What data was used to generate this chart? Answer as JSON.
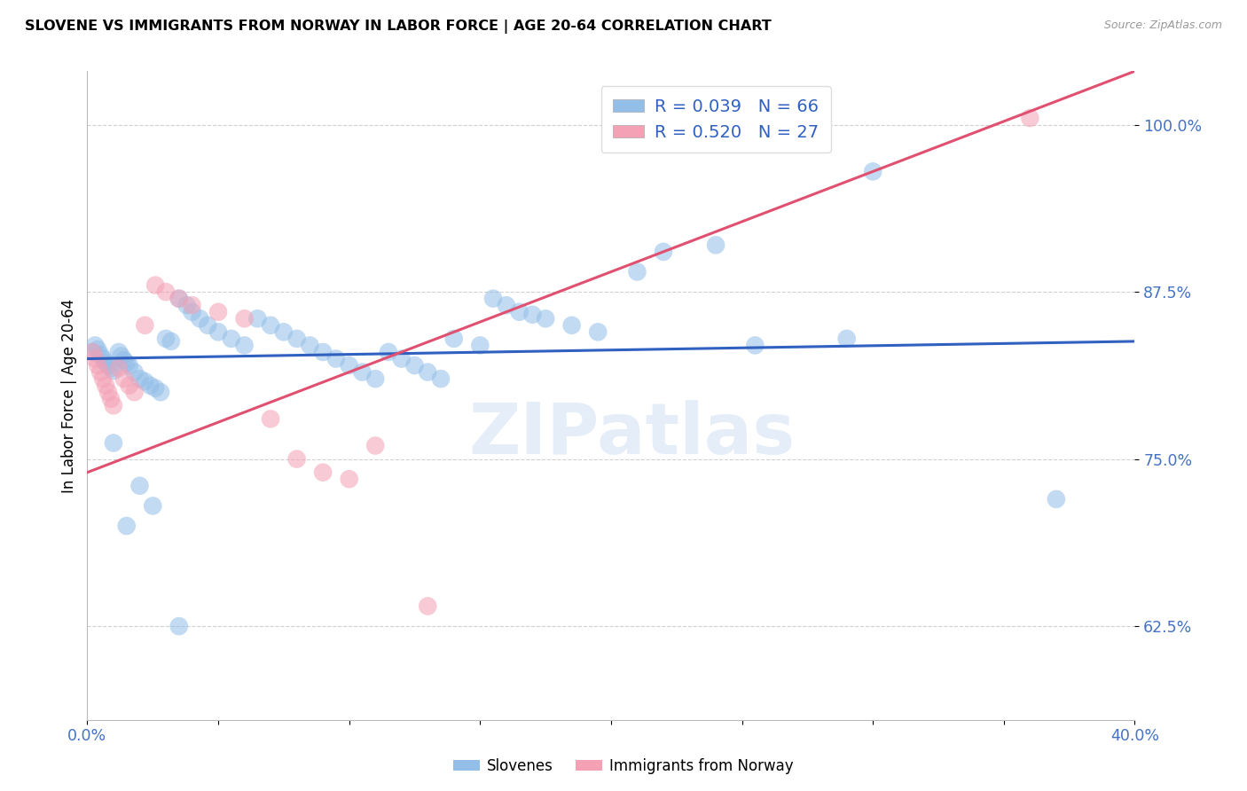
{
  "title": "SLOVENE VS IMMIGRANTS FROM NORWAY IN LABOR FORCE | AGE 20-64 CORRELATION CHART",
  "source_text": "Source: ZipAtlas.com",
  "ylabel": "In Labor Force | Age 20-64",
  "xlim": [
    0.0,
    0.4
  ],
  "ylim": [
    0.555,
    1.04
  ],
  "yticks": [
    0.625,
    0.75,
    0.875,
    1.0
  ],
  "ytick_labels": [
    "62.5%",
    "75.0%",
    "87.5%",
    "100.0%"
  ],
  "xticks": [
    0.0,
    0.05,
    0.1,
    0.15,
    0.2,
    0.25,
    0.3,
    0.35,
    0.4
  ],
  "xtick_labels": [
    "0.0%",
    "",
    "",
    "",
    "",
    "",
    "",
    "",
    "40.0%"
  ],
  "blue_color": "#92BEE8",
  "pink_color": "#F4A0B5",
  "blue_line_color": "#3060C0",
  "pink_line_color": "#E05070",
  "legend_blue_label": "R = 0.039   N = 66",
  "legend_pink_label": "R = 0.520   N = 27",
  "bottom_legend_blue": "Slovenes",
  "bottom_legend_pink": "Immigrants from Norway",
  "blue_line_x0": 0.0,
  "blue_line_x1": 0.4,
  "blue_line_y0": 0.825,
  "blue_line_y1": 0.838,
  "pink_line_x0": 0.0,
  "pink_line_x1": 0.4,
  "pink_line_y0": 0.74,
  "pink_line_y1": 1.04,
  "blue_scatter_x": [
    0.002,
    0.003,
    0.004,
    0.005,
    0.006,
    0.007,
    0.008,
    0.009,
    0.01,
    0.012,
    0.013,
    0.014,
    0.015,
    0.016,
    0.018,
    0.02,
    0.022,
    0.024,
    0.026,
    0.028,
    0.03,
    0.032,
    0.035,
    0.038,
    0.04,
    0.043,
    0.046,
    0.05,
    0.055,
    0.06,
    0.065,
    0.07,
    0.075,
    0.08,
    0.085,
    0.09,
    0.095,
    0.1,
    0.105,
    0.11,
    0.115,
    0.12,
    0.125,
    0.13,
    0.135,
    0.14,
    0.15,
    0.155,
    0.16,
    0.165,
    0.17,
    0.175,
    0.185,
    0.195,
    0.21,
    0.22,
    0.24,
    0.255,
    0.29,
    0.3,
    0.01,
    0.015,
    0.02,
    0.025,
    0.035,
    0.37
  ],
  "blue_scatter_y": [
    0.83,
    0.835,
    0.832,
    0.828,
    0.825,
    0.822,
    0.82,
    0.818,
    0.816,
    0.83,
    0.827,
    0.824,
    0.822,
    0.82,
    0.815,
    0.81,
    0.808,
    0.805,
    0.803,
    0.8,
    0.84,
    0.838,
    0.87,
    0.865,
    0.86,
    0.855,
    0.85,
    0.845,
    0.84,
    0.835,
    0.855,
    0.85,
    0.845,
    0.84,
    0.835,
    0.83,
    0.825,
    0.82,
    0.815,
    0.81,
    0.83,
    0.825,
    0.82,
    0.815,
    0.81,
    0.84,
    0.835,
    0.87,
    0.865,
    0.86,
    0.858,
    0.855,
    0.85,
    0.845,
    0.89,
    0.905,
    0.91,
    0.835,
    0.84,
    0.965,
    0.762,
    0.7,
    0.73,
    0.715,
    0.625,
    0.72
  ],
  "pink_scatter_x": [
    0.002,
    0.003,
    0.004,
    0.005,
    0.006,
    0.007,
    0.008,
    0.009,
    0.01,
    0.012,
    0.014,
    0.016,
    0.018,
    0.022,
    0.026,
    0.03,
    0.035,
    0.04,
    0.05,
    0.06,
    0.07,
    0.08,
    0.09,
    0.1,
    0.11,
    0.13,
    0.36
  ],
  "pink_scatter_y": [
    0.83,
    0.825,
    0.82,
    0.815,
    0.81,
    0.805,
    0.8,
    0.795,
    0.79,
    0.818,
    0.81,
    0.805,
    0.8,
    0.85,
    0.88,
    0.875,
    0.87,
    0.865,
    0.86,
    0.855,
    0.78,
    0.75,
    0.74,
    0.735,
    0.76,
    0.64,
    1.005
  ],
  "watermark_text": "ZIPatlas",
  "background_color": "#FFFFFF",
  "grid_color": "#CCCCCC",
  "title_fontsize": 11.5,
  "tick_label_color": "#4472C4"
}
